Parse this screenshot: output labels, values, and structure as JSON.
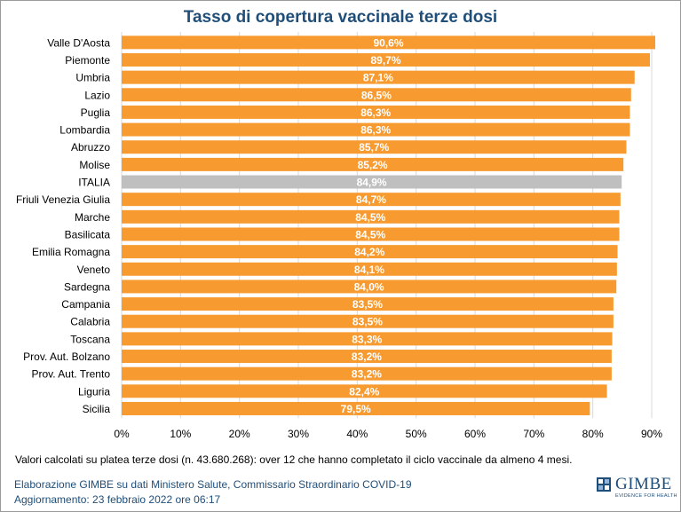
{
  "chart_data": {
    "type": "bar",
    "orientation": "horizontal",
    "title": "Tasso di copertura vaccinale terze dosi",
    "categories": [
      "Valle D'Aosta",
      "Piemonte",
      "Umbria",
      "Lazio",
      "Puglia",
      "Lombardia",
      "Abruzzo",
      "Molise",
      "ITALIA",
      "Friuli Venezia Giulia",
      "Marche",
      "Basilicata",
      "Emilia Romagna",
      "Veneto",
      "Sardegna",
      "Campania",
      "Calabria",
      "Toscana",
      "Prov. Aut. Bolzano",
      "Prov. Aut. Trento",
      "Liguria",
      "Sicilia"
    ],
    "values": [
      90.6,
      89.7,
      87.1,
      86.5,
      86.3,
      86.3,
      85.7,
      85.2,
      84.9,
      84.7,
      84.5,
      84.5,
      84.2,
      84.1,
      84.0,
      83.5,
      83.5,
      83.3,
      83.2,
      83.2,
      82.4,
      79.5
    ],
    "value_labels": [
      "90,6%",
      "89,7%",
      "87,1%",
      "86,5%",
      "86,3%",
      "86,3%",
      "85,7%",
      "85,2%",
      "84,9%",
      "84,7%",
      "84,5%",
      "84,5%",
      "84,2%",
      "84,1%",
      "84,0%",
      "83,5%",
      "83,5%",
      "83,3%",
      "83,2%",
      "83,2%",
      "82,4%",
      "79,5%"
    ],
    "highlight_category": "ITALIA",
    "xlim": [
      0,
      90
    ],
    "xticks": [
      "0%",
      "10%",
      "20%",
      "30%",
      "40%",
      "50%",
      "60%",
      "70%",
      "80%",
      "90%"
    ],
    "grid": true,
    "colors": {
      "bar": "#f79b31",
      "highlight": "#bfbfbf",
      "grid": "#d9d9d9"
    }
  },
  "footnote": "Valori calcolati su platea terze dosi (n. 43.680.268): over 12 che hanno completato il ciclo vaccinale da almeno 4 mesi.",
  "credit": "Elaborazione GIMBE su dati Ministero Salute, Commissario Straordinario COVID-19",
  "updated": "Aggiornamento: 23 febbraio 2022 ore 06:17",
  "logo": {
    "name": "GIMBE",
    "tagline": "EVIDENCE FOR HEALTH"
  }
}
